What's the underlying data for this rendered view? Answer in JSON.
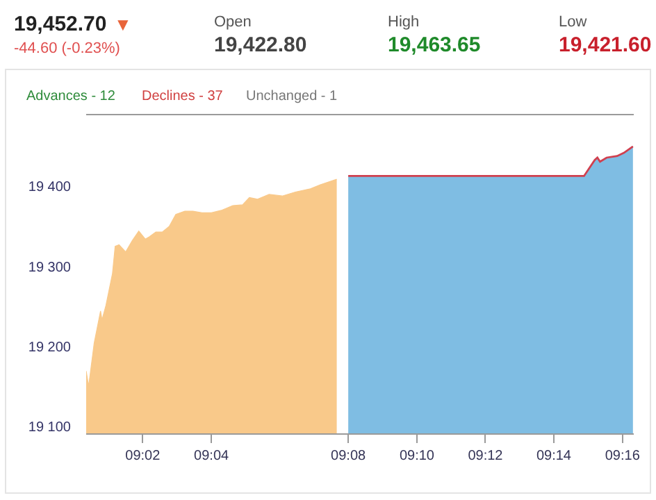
{
  "chart_data": {
    "type": "area",
    "annotations": [
      "19,452.70",
      "▼",
      "-44.60 (-0.23%)",
      "Open",
      "19,422.80",
      "High",
      "19,463.65",
      "Low",
      "19,421.60",
      "Advances - 12",
      "Declines - 37",
      "Unchanged - 1"
    ],
    "series": [
      {
        "color": "#f9c98a",
        "x": [
          9.0058,
          9.007,
          9.0097,
          9.0128,
          9.0135,
          9.0154,
          9.0186,
          9.0199,
          9.0218,
          9.025,
          9.0282,
          9.0314,
          9.0346,
          9.0365,
          9.0397,
          9.0429,
          9.0462,
          9.0494,
          9.0538,
          9.0577,
          9.0622,
          9.0667,
          9.0715,
          9.0771,
          9.0819,
          9.0852,
          9.0892,
          9.0948,
          9.1012,
          9.1076,
          9.1149,
          9.1197,
          9.1277
        ],
        "values": [
          19169,
          19150,
          19204,
          19244,
          19233,
          19251,
          19291,
          19325,
          19327,
          19318,
          19332,
          19344,
          19334,
          19337,
          19343,
          19343,
          19350,
          19365,
          19369,
          19369,
          19367,
          19367,
          19370,
          19376,
          19377,
          19386,
          19384,
          19390,
          19388,
          19393,
          19397,
          19402,
          19409
        ]
      },
      {
        "color": "#7fbde3",
        "x": [
          9.1333,
          9.248,
          9.2532,
          9.2545,
          9.2558,
          9.259,
          9.2641,
          9.2674,
          9.2718
        ],
        "values": [
          19413,
          19413,
          19433,
          19436,
          19431,
          19436,
          19438,
          19442,
          19450
        ]
      },
      {
        "type": "line",
        "color": "#d0404f",
        "x": [
          9.1333,
          9.248,
          9.2532,
          9.2545,
          9.2558,
          9.259,
          9.2641,
          9.2674,
          9.2718
        ],
        "values": [
          19413,
          19413,
          19433,
          19436,
          19431,
          19436,
          19438,
          19442,
          19450
        ]
      }
    ],
    "xlim": [
      9.0058,
      9.2722
    ],
    "xticks": [
      {
        "value": 9.0333,
        "label": "09:02"
      },
      {
        "value": 9.0667,
        "label": "09:04"
      },
      {
        "value": 9.1333,
        "label": "09:08"
      },
      {
        "value": 9.1667,
        "label": "09:10"
      },
      {
        "value": 9.2,
        "label": "09:12"
      },
      {
        "value": 9.2333,
        "label": "09:14"
      },
      {
        "value": 9.2667,
        "label": "09:16"
      }
    ],
    "ylim": [
      19091,
      19489
    ],
    "yticks": [
      {
        "value": 19100,
        "label": "19 100"
      },
      {
        "value": 19200,
        "label": "19 200"
      },
      {
        "value": 19300,
        "label": "19 300"
      },
      {
        "value": 19400,
        "label": "19 400"
      }
    ],
    "grid": false,
    "legend": false,
    "marker": "none",
    "line_style": "solid"
  }
}
